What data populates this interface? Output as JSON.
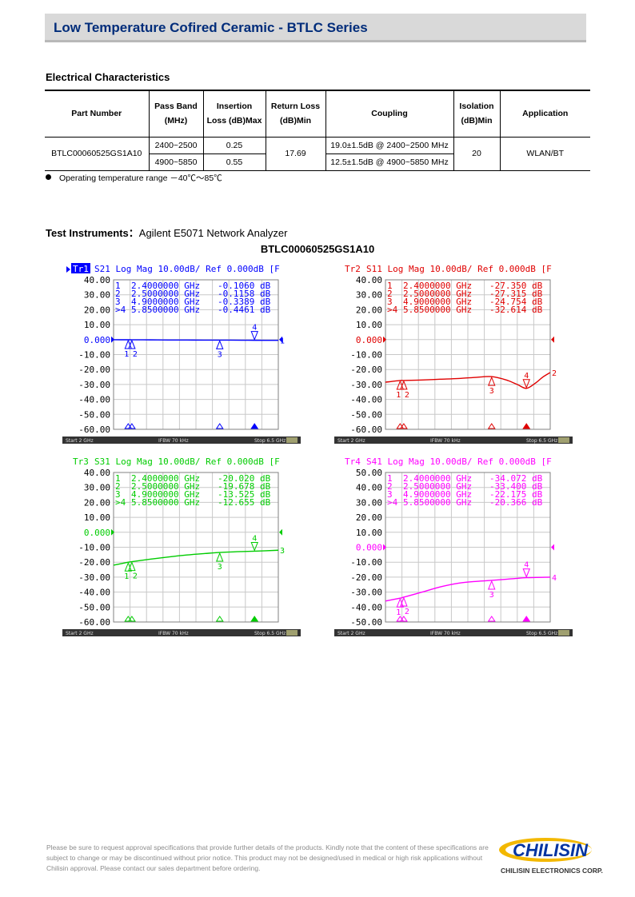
{
  "header": {
    "title": "Low Temperature Cofired Ceramic - BTLC Series"
  },
  "electrical": {
    "title": "Electrical Characteristics",
    "headers": [
      "Part Number",
      "Pass Band (MHz)",
      "Insertion Loss (dB)Max",
      "Return Loss (dB)Min",
      "Coupling",
      "Isolation (dB)Min",
      "Application"
    ],
    "row": {
      "part_number": "BTLC00060525GS1A10",
      "pass_band_1": "2400~2500",
      "pass_band_2": "4900~5850",
      "insertion_loss_1": "0.25",
      "insertion_loss_2": "0.55",
      "return_loss": "17.69",
      "coupling_1": "19.0±1.5dB @ 2400~2500 MHz",
      "coupling_2": "12.5±1.5dB @ 4900~5850 MHz",
      "isolation": "20",
      "application": "WLAN/BT"
    },
    "note": "Operating temperature range －40℃～85℃"
  },
  "instruments": {
    "label": "Test Instruments：",
    "value": "Agilent E5071 Network Analyzer",
    "part_title": "BTLC00060525GS1A10"
  },
  "chart_data": [
    {
      "type": "line",
      "color": "#0000ff",
      "header_tr": "Tr1",
      "header": "S21 Log Mag 10.00dB/ Ref 0.000dB [F",
      "ylim": [
        -60,
        40
      ],
      "yticks": [
        "40.00",
        "30.00",
        "20.00",
        "10.00",
        "0.000",
        "-10.00",
        "-20.00",
        "-30.00",
        "-40.00",
        "-50.00",
        "-60.00"
      ],
      "xlim": [
        2,
        6.5
      ],
      "x": [
        2,
        2.4,
        2.5,
        3,
        3.5,
        4,
        4.5,
        4.9,
        5.5,
        5.85,
        6.5
      ],
      "y": [
        -0.1,
        -0.106,
        -0.116,
        -0.18,
        -0.25,
        -0.3,
        -0.33,
        -0.339,
        -0.4,
        -0.446,
        -0.5
      ],
      "markers": [
        {
          "label": "1",
          "x": 2.4,
          "text": "2.4000000 GHz",
          "value": "-0.1060 dB"
        },
        {
          "label": "2",
          "x": 2.5,
          "text": "2.5000000 GHz",
          "value": "-0.1158 dB"
        },
        {
          "label": "3",
          "x": 4.9,
          "text": "4.9000000 GHz",
          "value": "-0.3389 dB"
        },
        {
          "label": ">4",
          "x": 5.85,
          "text": "5.8500000 GHz",
          "value": "-0.4461 dB"
        }
      ],
      "footer": [
        "Start 2 GHz",
        "IFBW 70 kHz",
        "Stop 6.5 GHz"
      ]
    },
    {
      "type": "line",
      "color": "#e00000",
      "header_tr": "Tr2",
      "header": "S11 Log Mag 10.00dB/ Ref 0.000dB [F",
      "ylim": [
        -60,
        40
      ],
      "yticks": [
        "40.00",
        "30.00",
        "20.00",
        "10.00",
        "0.000",
        "-10.00",
        "-20.00",
        "-30.00",
        "-40.00",
        "-50.00",
        "-60.00"
      ],
      "xlim": [
        2,
        6.5
      ],
      "x": [
        2,
        2.4,
        2.5,
        3,
        3.5,
        4,
        4.5,
        4.9,
        5.3,
        5.6,
        5.85,
        6.1,
        6.3,
        6.5
      ],
      "y": [
        -28.5,
        -27.35,
        -27.32,
        -27.0,
        -26.5,
        -26.0,
        -25.2,
        -24.75,
        -27.0,
        -30.0,
        -32.6,
        -29.0,
        -25.0,
        -22.0
      ],
      "markers": [
        {
          "label": "1",
          "x": 2.4,
          "text": "2.4000000 GHz",
          "value": "-27.350 dB"
        },
        {
          "label": "2",
          "x": 2.5,
          "text": "2.5000000 GHz",
          "value": "-27.315 dB"
        },
        {
          "label": "3",
          "x": 4.9,
          "text": "4.9000000 GHz",
          "value": "-24.754 dB"
        },
        {
          "label": ">4",
          "x": 5.85,
          "text": "5.8500000 GHz",
          "value": "-32.614 dB"
        }
      ],
      "footer": [
        "Start 2 GHz",
        "IFBW 70 kHz",
        "Stop 6.5 GHz"
      ]
    },
    {
      "type": "line",
      "color": "#00cc00",
      "header_tr": "Tr3",
      "header": "S31 Log Mag 10.00dB/ Ref 0.000dB [F",
      "ylim": [
        -60,
        40
      ],
      "yticks": [
        "40.00",
        "30.00",
        "20.00",
        "10.00",
        "0.000",
        "-10.00",
        "-20.00",
        "-30.00",
        "-40.00",
        "-50.00",
        "-60.00"
      ],
      "xlim": [
        2,
        6.5
      ],
      "x": [
        2,
        2.4,
        2.5,
        3,
        3.5,
        4,
        4.5,
        4.9,
        5.5,
        5.85,
        6.5
      ],
      "y": [
        -22.0,
        -20.02,
        -19.68,
        -18.0,
        -16.5,
        -15.2,
        -14.2,
        -13.5,
        -12.9,
        -12.65,
        -12.0
      ],
      "markers": [
        {
          "label": "1",
          "x": 2.4,
          "text": "2.4000000 GHz",
          "value": "-20.020 dB"
        },
        {
          "label": "2",
          "x": 2.5,
          "text": "2.5000000 GHz",
          "value": "-19.678 dB"
        },
        {
          "label": "3",
          "x": 4.9,
          "text": "4.9000000 GHz",
          "value": "-13.525 dB"
        },
        {
          "label": ">4",
          "x": 5.85,
          "text": "5.8500000 GHz",
          "value": "-12.655 dB"
        }
      ],
      "footer": [
        "Start 2 GHz",
        "IFBW 70 kHz",
        "Stop 6.5 GHz"
      ]
    },
    {
      "type": "line",
      "color": "#ff00ff",
      "header_tr": "Tr4",
      "header": "S41 Log Mag 10.00dB/ Ref 0.000dB [F",
      "ylim": [
        -50,
        50
      ],
      "yticks": [
        "50.00",
        "40.00",
        "30.00",
        "20.00",
        "10.00",
        "0.000",
        "-10.00",
        "-20.00",
        "-30.00",
        "-40.00",
        "-50.00"
      ],
      "xlim": [
        2,
        6.5
      ],
      "x": [
        2,
        2.4,
        2.5,
        3,
        3.5,
        4,
        4.5,
        4.9,
        5.5,
        5.85,
        6.5
      ],
      "y": [
        -36.0,
        -34.07,
        -33.4,
        -30.0,
        -26.5,
        -24.0,
        -22.8,
        -22.18,
        -21.0,
        -20.37,
        -20.0
      ],
      "markers": [
        {
          "label": "1",
          "x": 2.4,
          "text": "2.4000000 GHz",
          "value": "-34.072 dB"
        },
        {
          "label": "2",
          "x": 2.5,
          "text": "2.5000000 GHz",
          "value": "-33.400 dB"
        },
        {
          "label": "3",
          "x": 4.9,
          "text": "4.9000000 GHz",
          "value": "-22.175 dB"
        },
        {
          "label": ">4",
          "x": 5.85,
          "text": "5.8500000 GHz",
          "value": "-20.366 dB"
        }
      ],
      "footer": [
        "Start 2 GHz",
        "IFBW 70 kHz",
        "Stop 6.5 GHz"
      ]
    }
  ],
  "footer": {
    "disclaimer": "Please be sure to request approval specifications that provide further details of the products. Kindly note that the content of these specifications are subject to change or may be discontinued without prior notice. This product may not be designed/used in medical or high risk applications without Chilisin approval. Please contact our sales department before ordering.",
    "logo_text": "CHILISIN",
    "company": "CHILISIN ELECTRONICS CORP."
  }
}
